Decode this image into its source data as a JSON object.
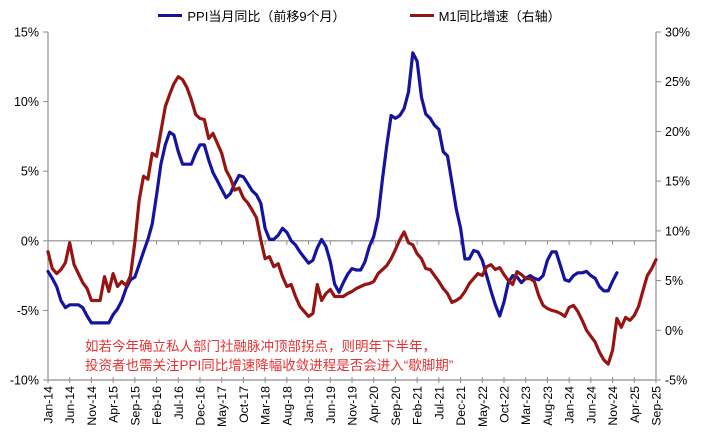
{
  "legend": {
    "items": [
      {
        "id": "ppi",
        "label": "PPI当月同比（前移9个月）",
        "color": "#14149e"
      },
      {
        "id": "m1",
        "label": "M1同比增速（右轴）",
        "color": "#961412"
      }
    ]
  },
  "annotation": {
    "line1": "如若今年确立私人部门社融脉冲顶部拐点，则明年下半年，",
    "line2": "投资者也需关注PPI同比增速降幅收敛进程是否会进入“歇脚期”",
    "color": "#e43333"
  },
  "axis_color": "#8c8c8c",
  "label_color": "#000000",
  "chart_data": {
    "type": "line",
    "title": "",
    "x_frequency": "monthly",
    "x_start": "Jan-14",
    "x_end": "Sep-25",
    "x_tick_interval_months": 5,
    "x_tick_labels": [
      "Jan-14",
      "Jun-14",
      "Nov-14",
      "Apr-15",
      "Sep-15",
      "Feb-16",
      "Jul-16",
      "Dec-16",
      "May-17",
      "Oct-17",
      "Mar-18",
      "Aug-18",
      "Jan-19",
      "Jun-19",
      "Nov-19",
      "Apr-20",
      "Sep-20",
      "Feb-21",
      "Jul-21",
      "Dec-21",
      "May-22",
      "Oct-22",
      "Mar-23",
      "Aug-23",
      "Jan-24",
      "Jun-24",
      "Nov-24",
      "Apr-25",
      "Sep-25"
    ],
    "left_axis": {
      "ticks": [
        "15%",
        "10%",
        "5%",
        "0%",
        "-5%",
        "-10%"
      ],
      "max": 15,
      "min": -10,
      "step": 5
    },
    "right_axis": {
      "ticks": [
        "30%",
        "25%",
        "20%",
        "15%",
        "10%",
        "5%",
        "0%",
        "-5%"
      ],
      "max": 30,
      "min": -5,
      "step": 5
    },
    "grid": "zero-line-only",
    "legend_position": "top",
    "series": [
      {
        "name": "PPI当月同比（前移9个月）",
        "axis": "left",
        "color": "#14149e",
        "start_month": "Jan-14",
        "values": [
          -2.2,
          -2.7,
          -3.3,
          -4.3,
          -4.8,
          -4.6,
          -4.6,
          -4.6,
          -4.8,
          -5.4,
          -5.9,
          -5.9,
          -5.9,
          -5.9,
          -5.9,
          -5.3,
          -4.9,
          -4.3,
          -3.4,
          -2.8,
          -2.6,
          -1.7,
          -0.8,
          0.1,
          1.2,
          3.3,
          5.5,
          6.9,
          7.8,
          7.6,
          6.4,
          5.5,
          5.5,
          5.5,
          6.3,
          6.9,
          6.9,
          5.8,
          4.9,
          4.3,
          3.7,
          3.1,
          3.4,
          4.1,
          4.7,
          4.6,
          4.1,
          3.6,
          3.3,
          2.7,
          0.9,
          0.1,
          0.1,
          0.4,
          0.9,
          0.6,
          0.0,
          -0.3,
          -0.8,
          -1.2,
          -1.6,
          -1.4,
          -0.5,
          0.1,
          -0.4,
          -1.5,
          -3.1,
          -3.7,
          -3.0,
          -2.4,
          -2.0,
          -2.1,
          -2.1,
          -1.5,
          -0.4,
          0.3,
          1.7,
          4.4,
          6.8,
          9.0,
          8.8,
          9.0,
          9.5,
          10.7,
          13.5,
          12.9,
          10.3,
          9.1,
          8.8,
          8.3,
          8.0,
          6.4,
          6.1,
          4.2,
          2.3,
          0.9,
          -1.3,
          -1.3,
          -0.7,
          -0.8,
          -1.4,
          -2.5,
          -3.6,
          -4.6,
          -5.4,
          -4.4,
          -3.0,
          -2.5,
          -2.6,
          -3.0,
          -2.7,
          -2.5,
          -2.7,
          -2.8,
          -2.5,
          -1.4,
          -0.8,
          -0.8,
          -1.8,
          -2.8,
          -2.9,
          -2.5,
          -2.3,
          -2.3,
          -2.2,
          -2.5,
          -2.7,
          -3.3,
          -3.6,
          -3.6,
          -2.9,
          -2.3
        ]
      },
      {
        "name": "M1同比增速（右轴）",
        "axis": "right",
        "color": "#961412",
        "start_month": "Jan-14",
        "values": [
          7.9,
          6.2,
          5.7,
          6.1,
          6.8,
          8.8,
          6.6,
          5.7,
          4.8,
          4.2,
          3.0,
          3.0,
          3.0,
          5.4,
          3.9,
          5.7,
          4.4,
          4.9,
          4.5,
          5.5,
          8.9,
          13.1,
          15.5,
          15.2,
          17.8,
          17.5,
          20.0,
          22.5,
          23.7,
          24.8,
          25.5,
          25.2,
          24.4,
          23.2,
          21.7,
          21.3,
          21.2,
          19.3,
          19.8,
          18.8,
          17.8,
          16.1,
          15.3,
          14.1,
          14.3,
          13.3,
          12.8,
          12.1,
          11.3,
          9.1,
          7.2,
          7.4,
          6.4,
          6.7,
          5.4,
          4.4,
          4.6,
          3.4,
          2.4,
          1.9,
          1.4,
          1.7,
          4.6,
          3.0,
          3.7,
          4.1,
          3.4,
          3.4,
          3.4,
          3.7,
          3.9,
          4.2,
          4.4,
          4.6,
          4.7,
          4.9,
          5.7,
          6.1,
          6.5,
          7.2,
          8.1,
          9.1,
          9.9,
          8.8,
          8.6,
          7.7,
          7.2,
          6.2,
          6.1,
          5.5,
          4.9,
          4.2,
          3.7,
          2.8,
          3.0,
          3.3,
          3.9,
          4.7,
          5.2,
          5.7,
          5.5,
          6.4,
          6.6,
          6.1,
          6.3,
          5.6,
          5.0,
          4.6,
          5.9,
          5.6,
          5.2,
          5.2,
          4.9,
          3.5,
          2.5,
          2.2,
          2.0,
          1.9,
          1.7,
          1.4,
          2.3,
          2.5,
          1.9,
          1.0,
          0.0,
          -0.6,
          -1.2,
          -2.2,
          -3.0,
          -3.4,
          -2.0,
          1.2,
          0.3,
          1.3,
          1.0,
          1.5,
          2.4,
          4.0,
          5.5,
          6.2,
          7.1
        ]
      }
    ]
  }
}
